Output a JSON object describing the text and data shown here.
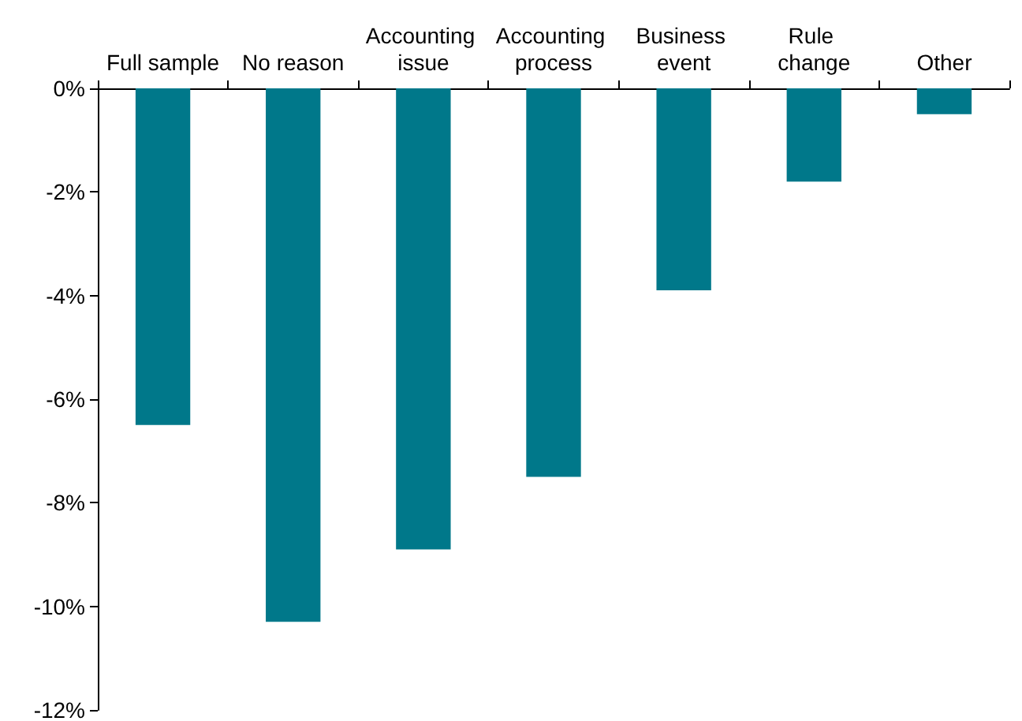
{
  "chart_data": {
    "type": "bar",
    "categories": [
      "Full sample",
      "No reason",
      "Accounting issue",
      "Accounting process",
      "Business event",
      "Rule change",
      "Other"
    ],
    "values": [
      -6.5,
      -10.3,
      -8.9,
      -7.5,
      -3.9,
      -1.8,
      -0.5
    ],
    "color": "#00788a",
    "ylim": [
      -12,
      0
    ],
    "yticks": [
      {
        "value": -12,
        "label": "-12%"
      },
      {
        "value": -10,
        "label": "-10%"
      },
      {
        "value": -8,
        "label": "-8%"
      },
      {
        "value": -6,
        "label": "-6%"
      },
      {
        "value": -4,
        "label": "-4%"
      },
      {
        "value": -2,
        "label": "-2%"
      },
      {
        "value": 0,
        "label": "0%"
      }
    ],
    "data_labels": false
  }
}
